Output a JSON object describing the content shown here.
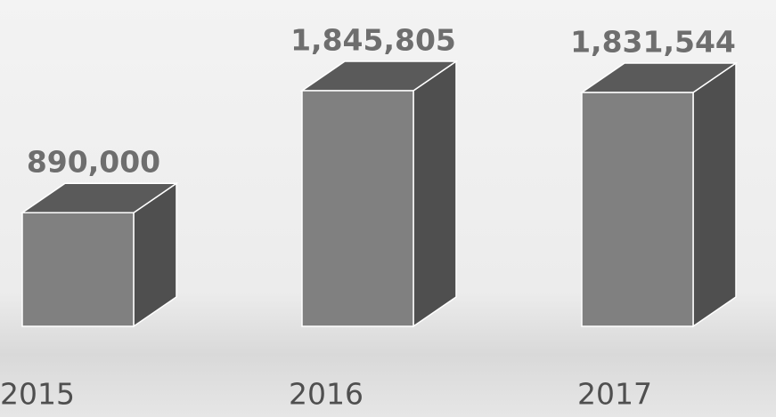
{
  "chart_data": {
    "type": "bar3d",
    "categories": [
      "2015",
      "2016",
      "2017"
    ],
    "values": [
      890000,
      1845805,
      1831544
    ],
    "value_labels": [
      "890,000",
      "1,845,805",
      "1,831,544"
    ],
    "color": "#808080"
  }
}
